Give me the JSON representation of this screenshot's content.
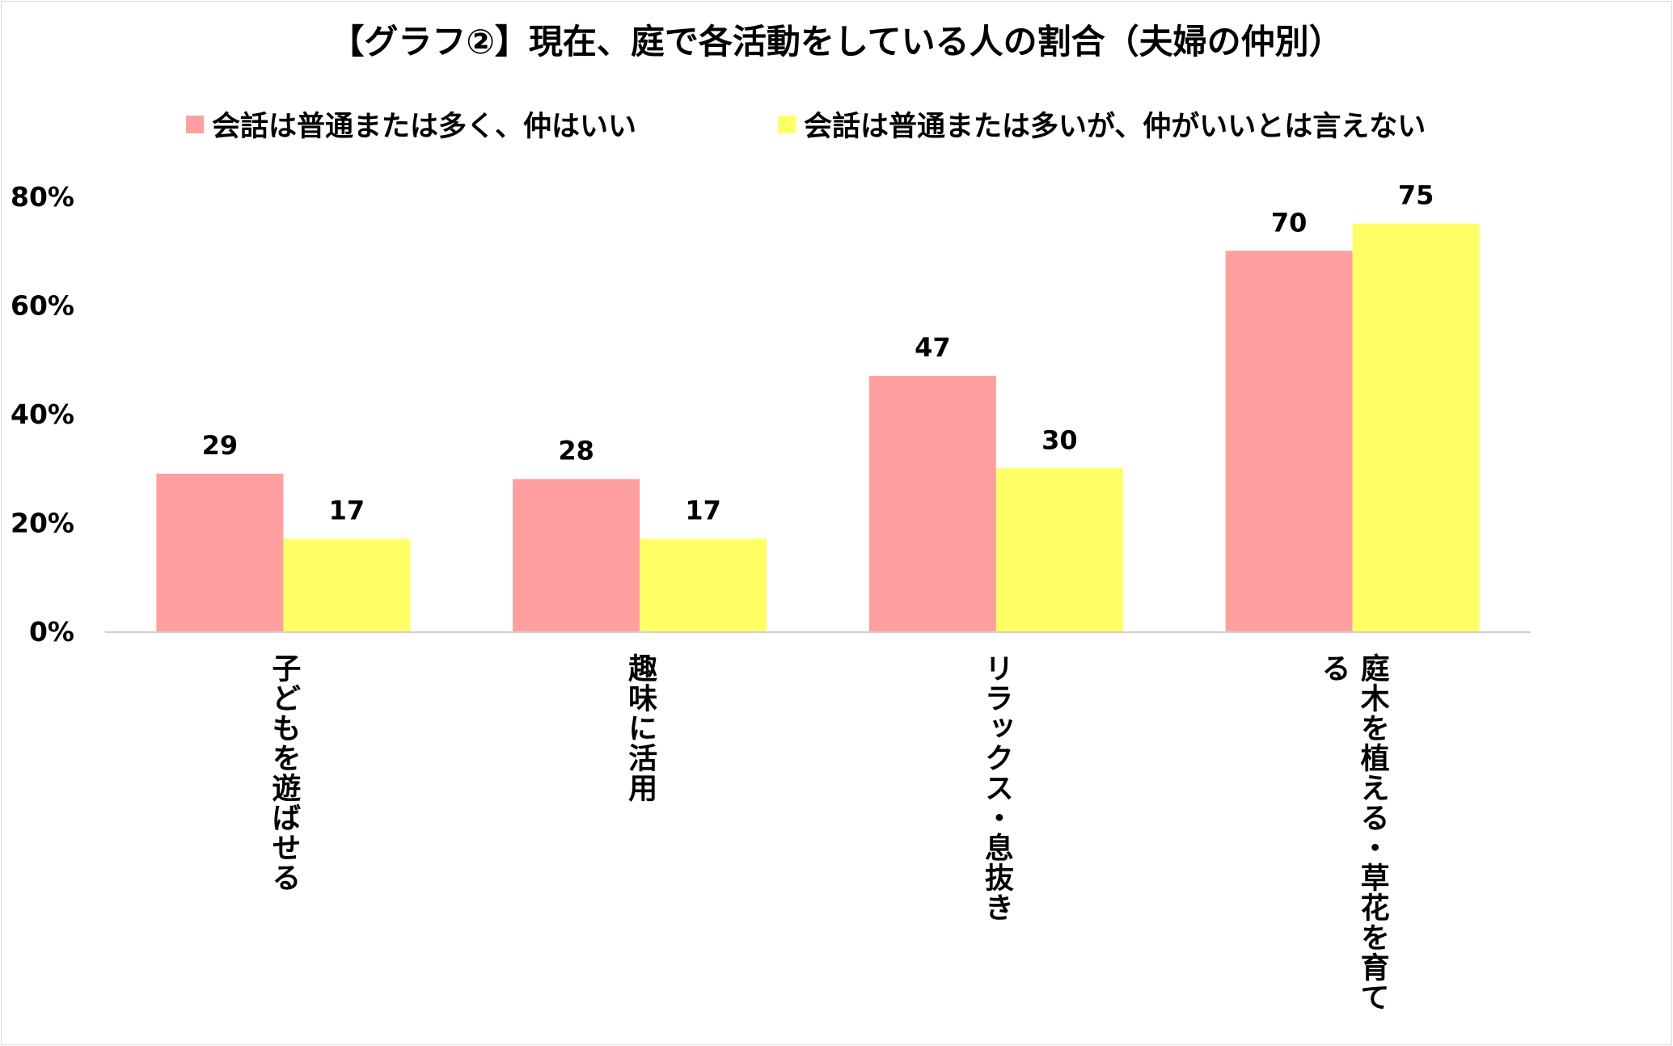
{
  "chart_data": {
    "type": "bar",
    "title": "【グラフ②】現在、庭で各活動をしている人の割合（夫婦の仲別）",
    "categories": [
      "子どもを遊ばせる",
      "趣味に活用",
      "リラックス・息抜き",
      "庭木を植える・草花を育てる"
    ],
    "series": [
      {
        "name": "会話は普通または多く、仲はいい",
        "values": [
          29,
          28,
          47,
          70
        ],
        "color": "#ff9f9f"
      },
      {
        "name": "会話は普通または多いが、仲がいいとは言えない",
        "values": [
          17,
          17,
          30,
          75
        ],
        "color": "#ffff66"
      }
    ],
    "yticks": [
      "0%",
      "20%",
      "40%",
      "60%",
      "80%"
    ],
    "ylim": [
      0,
      80
    ],
    "grid": false,
    "legend": "top"
  }
}
